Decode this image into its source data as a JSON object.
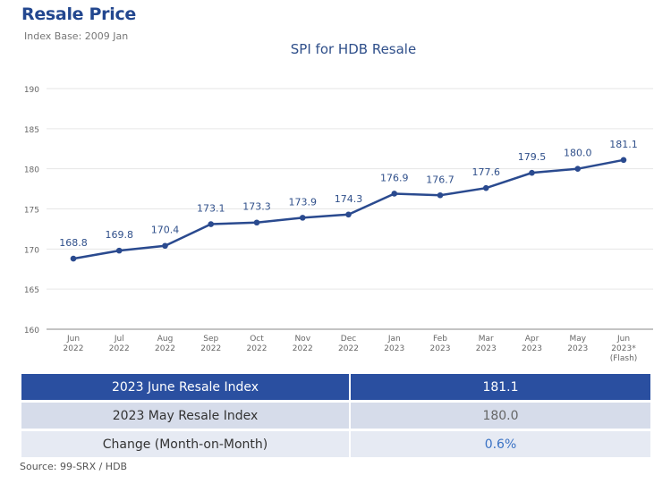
{
  "header": {
    "title": "Resale Price",
    "subtitle": "Index Base: 2009 Jan"
  },
  "chart_data": {
    "type": "line",
    "title": "SPI for HDB Resale",
    "categories": [
      [
        "Jun",
        "2022"
      ],
      [
        "Jul",
        "2022"
      ],
      [
        "Aug",
        "2022"
      ],
      [
        "Sep",
        "2022"
      ],
      [
        "Oct",
        "2022"
      ],
      [
        "Nov",
        "2022"
      ],
      [
        "Dec",
        "2022"
      ],
      [
        "Jan",
        "2023"
      ],
      [
        "Feb",
        "2023"
      ],
      [
        "Mar",
        "2023"
      ],
      [
        "Apr",
        "2023"
      ],
      [
        "May",
        "2023"
      ],
      [
        "Jun",
        "2023*",
        "(Flash)"
      ]
    ],
    "values": [
      168.8,
      169.8,
      170.4,
      173.1,
      173.3,
      173.9,
      174.3,
      176.9,
      176.7,
      177.6,
      179.5,
      180.0,
      181.1
    ],
    "data_labels": [
      "168.8",
      "169.8",
      "170.4",
      "173.1",
      "173.3",
      "173.9",
      "174.3",
      "176.9",
      "176.7",
      "177.6",
      "179.5",
      "180.0",
      "181.1"
    ],
    "yticks": [
      160,
      165,
      170,
      175,
      180,
      185,
      190
    ],
    "ylim": [
      160,
      190
    ],
    "grid": true,
    "color": "#2a4a8f"
  },
  "table": {
    "rows": [
      {
        "label": "2023 June Resale Index",
        "value": "181.1"
      },
      {
        "label": "2023 May Resale Index",
        "value": "180.0"
      },
      {
        "label": "Change (Month-on-Month)",
        "value": "0.6%"
      }
    ]
  },
  "source": "Source: 99-SRX / HDB"
}
